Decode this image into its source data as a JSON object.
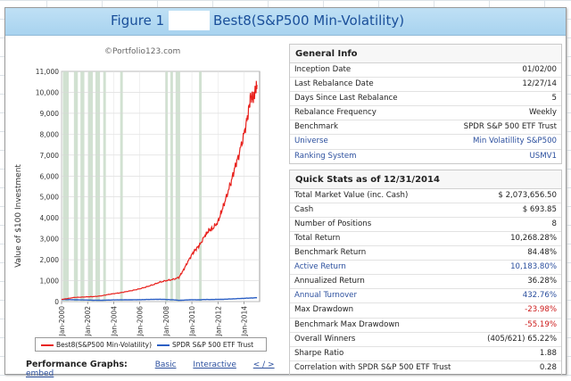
{
  "title": {
    "figure_label": "Figure 1",
    "main": "Best8(S&P500 Min-Volatility)"
  },
  "chart_data": {
    "type": "line",
    "watermark": "©Portfolio123.com",
    "ylabel": "Value of $100 Investment",
    "ylim": [
      0,
      11000
    ],
    "y_ticks": [
      "0",
      "1,000",
      "2,000",
      "3,000",
      "4,000",
      "5,000",
      "6,000",
      "7,000",
      "8,000",
      "9,000",
      "10,000",
      "11,000"
    ],
    "x_ticks": [
      "Jan-2000",
      "Jan-2002",
      "Jan-2004",
      "Jan-2006",
      "Jan-2008",
      "Jan-2010",
      "Jan-2012",
      "Jan-2014"
    ],
    "xlim": [
      2000,
      2015.2
    ],
    "series": [
      {
        "name": "Best8(S&P500 Min-Volatility)",
        "color": "#e8211d",
        "x": [
          2000.0,
          2000.5,
          2001.0,
          2001.5,
          2002.0,
          2002.5,
          2003.0,
          2003.5,
          2004.0,
          2004.5,
          2005.0,
          2005.5,
          2006.0,
          2006.5,
          2007.0,
          2007.5,
          2008.0,
          2008.5,
          2009.0,
          2009.3,
          2009.6,
          2010.0,
          2010.3,
          2010.6,
          2011.0,
          2011.3,
          2011.6,
          2012.0,
          2012.3,
          2012.6,
          2013.0,
          2013.3,
          2013.6,
          2014.0,
          2014.3,
          2014.5,
          2014.7,
          2014.85,
          2015.0
        ],
        "values": [
          100,
          150,
          200,
          210,
          230,
          240,
          270,
          330,
          380,
          420,
          480,
          540,
          610,
          700,
          800,
          920,
          1000,
          1050,
          1150,
          1450,
          1800,
          2250,
          2500,
          2700,
          3150,
          3400,
          3500,
          3800,
          4350,
          4900,
          5700,
          6400,
          7000,
          8000,
          8900,
          9800,
          9700,
          10000,
          10350
        ]
      },
      {
        "name": "SPDR S&P 500 ETF Trust",
        "color": "#2b5fc4",
        "x": [
          2000.0,
          2000.5,
          2001.0,
          2001.5,
          2002.0,
          2002.5,
          2003.0,
          2003.5,
          2004.0,
          2004.5,
          2005.0,
          2005.5,
          2006.0,
          2006.5,
          2007.0,
          2007.5,
          2008.0,
          2008.5,
          2009.0,
          2009.5,
          2010.0,
          2010.5,
          2011.0,
          2011.5,
          2012.0,
          2012.5,
          2013.0,
          2013.5,
          2014.0,
          2014.5,
          2015.0
        ],
        "values": [
          100,
          95,
          88,
          80,
          75,
          65,
          62,
          72,
          80,
          82,
          85,
          88,
          92,
          98,
          105,
          110,
          100,
          90,
          60,
          75,
          90,
          85,
          100,
          98,
          105,
          112,
          125,
          140,
          155,
          170,
          185
        ]
      }
    ],
    "shaded_periods": [
      [
        2000.1,
        2000.55
      ],
      [
        2000.95,
        2001.25
      ],
      [
        2001.45,
        2001.75
      ],
      [
        2002.05,
        2002.4
      ],
      [
        2002.6,
        2002.95
      ],
      [
        2003.2,
        2003.4
      ],
      [
        2004.5,
        2004.7
      ],
      [
        2007.95,
        2008.15
      ],
      [
        2008.35,
        2008.55
      ],
      [
        2008.75,
        2009.1
      ],
      [
        2010.55,
        2010.75
      ]
    ],
    "shade_color": "#c9dcc9",
    "legend_position": "bottom",
    "grid": true
  },
  "performance": {
    "label": "Performance Graphs:",
    "links": [
      "Basic",
      "Interactive",
      "< / > embed"
    ]
  },
  "general_info": {
    "title": "General Info",
    "rows": [
      {
        "label": "Inception Date",
        "value": "01/02/00"
      },
      {
        "label": "Last Rebalance Date",
        "value": "12/27/14"
      },
      {
        "label": "Days Since Last Rebalance",
        "value": "5"
      },
      {
        "label": "Rebalance Frequency",
        "value": "Weekly"
      },
      {
        "label": "Benchmark",
        "value": "SPDR S&P 500 ETF Trust"
      },
      {
        "label": "Universe",
        "value": "Min Volatillity S&P500"
      },
      {
        "label": "Ranking System",
        "value": "USMV1"
      }
    ]
  },
  "quick_stats": {
    "title": "Quick Stats as of 12/31/2014",
    "rows": [
      {
        "label": "Total Market Value (inc. Cash)",
        "value": "$ 2,073,656.50"
      },
      {
        "label": "Cash",
        "value": "$ 693.85"
      },
      {
        "label": "Number of Positions",
        "value": "8"
      },
      {
        "label": "Total Return",
        "value": "10,268.28%"
      },
      {
        "label": "Benchmark Return",
        "value": "84.48%"
      },
      {
        "label": "Active Return",
        "value": "10,183.80%"
      },
      {
        "label": "Annualized Return",
        "value": "36.28%"
      },
      {
        "label": "Annual Turnover",
        "value": "432.76%"
      },
      {
        "label": "Max Drawdown",
        "value": "-23.98%"
      },
      {
        "label": "Benchmark Max Drawdown",
        "value": "-55.19%"
      },
      {
        "label": "Overall Winners",
        "value": "(405/621) 65.22%"
      },
      {
        "label": "Sharpe Ratio",
        "value": "1.88"
      },
      {
        "label": "Correlation with SPDR S&P 500 ETF Trust",
        "value": "0.28"
      }
    ]
  },
  "colors": {
    "title_bar": "#bfe0f5",
    "link_blue": "#2b4f9e",
    "negative_red": "#cc1a1a"
  }
}
